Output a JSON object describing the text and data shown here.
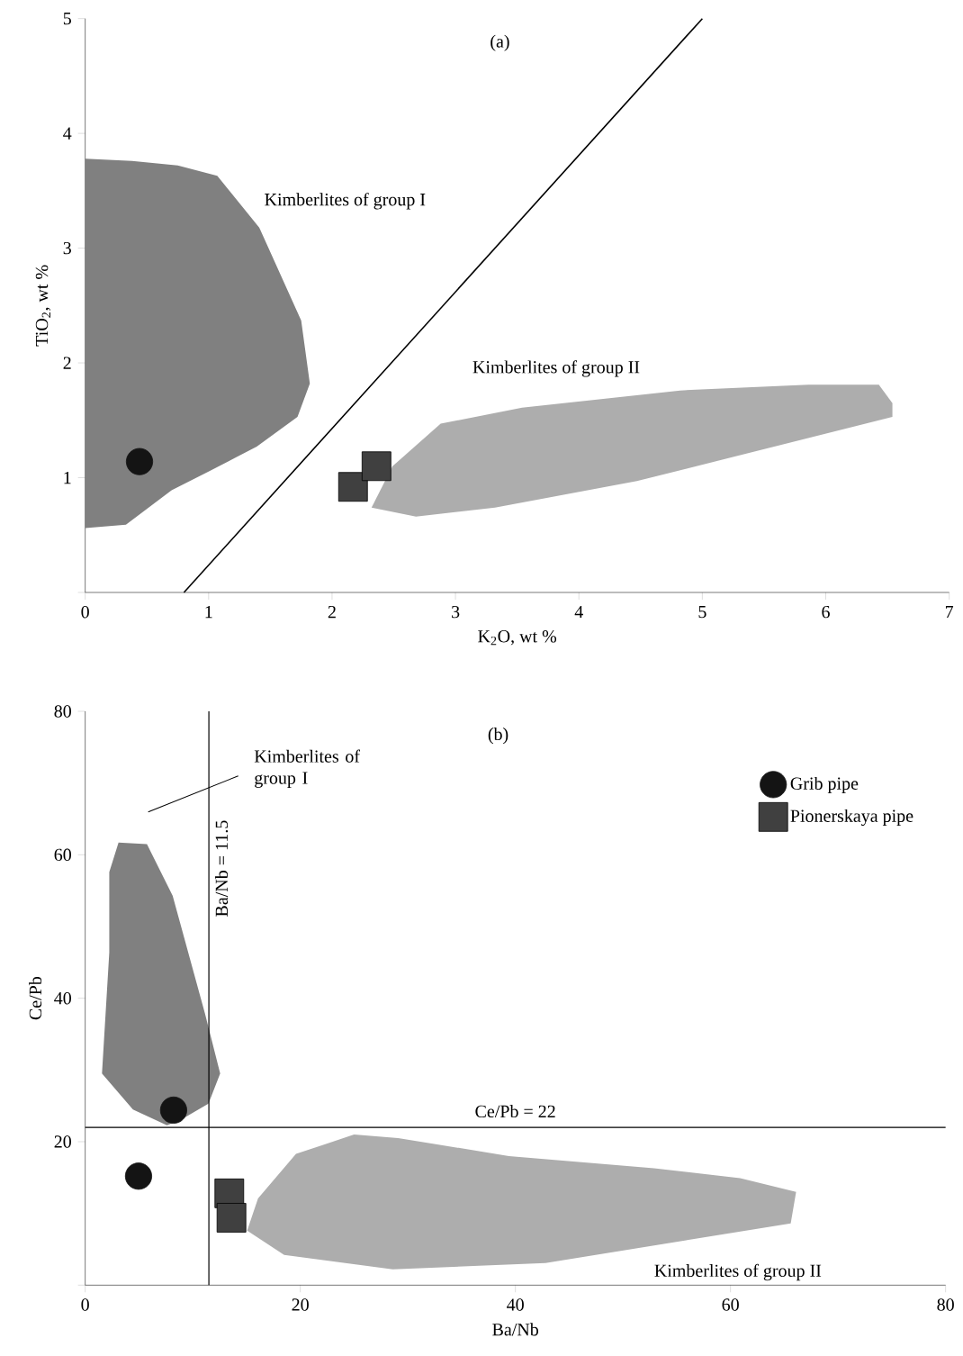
{
  "chart_data": [
    {
      "type": "scatter",
      "title": "(a)",
      "xlabel": "K$_{2}$O, wt %",
      "ylabel": "TiO$_{2}$, wt %",
      "xlim": [
        0,
        7
      ],
      "ylim": [
        0,
        5
      ],
      "xticks": [
        0,
        1,
        2,
        3,
        4,
        5,
        6,
        7
      ],
      "yticks": [
        {
          "value": 0,
          "label": null
        },
        1,
        2,
        3,
        4,
        5
      ],
      "series": [
        {
          "type": "area",
          "color": "#808080",
          "x": [
            0,
            0.38,
            0.75,
            1.07,
            1.41,
            1.75,
            1.82,
            1.72,
            1.39,
            1.01,
            0.7,
            0.33,
            0
          ],
          "values": [
            3.78,
            3.76,
            3.72,
            3.63,
            3.18,
            2.37,
            1.82,
            1.53,
            1.27,
            1.06,
            0.89,
            0.59,
            0.56
          ]
        },
        {
          "type": "area",
          "color": "#adadad",
          "x": [
            2.32,
            2.49,
            2.88,
            3.54,
            4.82,
            5.86,
            6.43,
            6.54,
            6.54,
            4.47,
            3.32,
            2.68
          ],
          "values": [
            0.74,
            1.1,
            1.47,
            1.61,
            1.76,
            1.81,
            1.81,
            1.65,
            1.53,
            0.97,
            0.74,
            0.66
          ]
        },
        {
          "type": "line",
          "color": "#000000",
          "x": [
            0.8,
            5
          ],
          "values": [
            0,
            5
          ]
        },
        {
          "marker": "circle",
          "color": "#141414",
          "x": [
            0.44
          ],
          "values": [
            1.14
          ]
        },
        {
          "marker": "square",
          "color": "#404040",
          "x": [
            2.17,
            2.36
          ],
          "values": [
            0.92,
            1.1
          ]
        }
      ],
      "annotations": [
        "Kimberlites of group I",
        "Kimberlites of group II"
      ]
    },
    {
      "type": "scatter",
      "title": "(b)",
      "xlabel": "Ba/Nb",
      "ylabel": "Ce/Pb",
      "legend": "top right",
      "xlim": [
        0,
        80
      ],
      "ylim": [
        0,
        80
      ],
      "xticks": [
        0,
        20,
        40,
        60,
        80
      ],
      "yticks": [
        {
          "value": 0,
          "label": null
        },
        20,
        40,
        60,
        80
      ],
      "series": [
        {
          "type": "area",
          "color": "#808080",
          "x": [
            1.56,
            2.24,
            2.24,
            3.1,
            5.74,
            8.13,
            11.15,
            12.55,
            11.46,
            8.84,
            7.6,
            4.44
          ],
          "values": [
            29.5,
            46.4,
            57.6,
            61.7,
            61.5,
            54.3,
            37.8,
            29.5,
            25.3,
            23.0,
            22.3,
            24.5
          ]
        },
        {
          "type": "area",
          "color": "#adadad",
          "x": [
            15.06,
            16.07,
            19.6,
            22.2,
            25.0,
            29.1,
            39.4,
            52.9,
            60.9,
            66.1,
            65.6,
            42.8,
            28.6,
            18.5
          ],
          "values": [
            7.6,
            12.1,
            18.3,
            19.6,
            21.0,
            20.5,
            18.0,
            16.3,
            14.9,
            13.0,
            8.6,
            3.1,
            2.2,
            4.2
          ]
        },
        {
          "marker": "circle",
          "name": "Grib pipe",
          "color": "#141414",
          "x": [
            8.22,
            4.96
          ],
          "values": [
            24.4,
            15.2
          ]
        },
        {
          "marker": "square",
          "name": "Pionerskaya pipe",
          "color": "#404040",
          "x": [
            13.4,
            13.6
          ],
          "values": [
            12.8,
            9.4
          ]
        }
      ],
      "ref_lines": [
        {
          "axis": "x",
          "value": 11.5,
          "label": "Ba/Nb = 11.5"
        },
        {
          "axis": "y",
          "value": 22,
          "label": "Ce/Pb = 22"
        }
      ],
      "annotations": [
        "Kimberlites of group I",
        "Kimberlites of group II"
      ]
    }
  ]
}
